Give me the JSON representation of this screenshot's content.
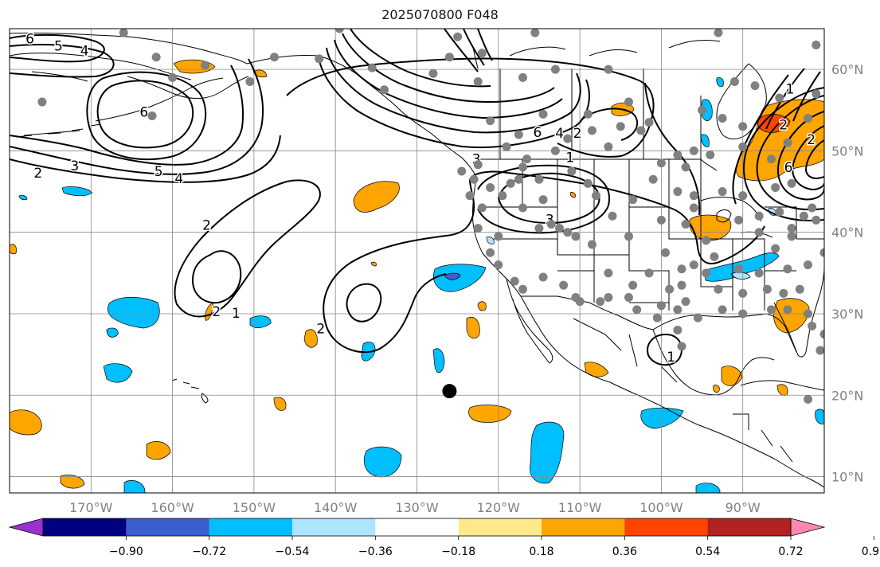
{
  "title": "2025070800 F048",
  "map": {
    "lon_range": [
      -180,
      -80
    ],
    "lat_range": [
      8,
      65
    ],
    "gridlines": true,
    "contour_style": "black solid lines with inline labels",
    "fill_colors": {
      "cyan": "#00bfff",
      "light_blue": "#aee4ff",
      "royal_blue": "#3a5fcd",
      "orange": "#ffa500",
      "red_orange": "#ff4500",
      "violet": "#9b30d0"
    },
    "lon_ticks": [
      {
        "value": -170,
        "label": "170°W"
      },
      {
        "value": -160,
        "label": "160°W"
      },
      {
        "value": -150,
        "label": "150°W"
      },
      {
        "value": -140,
        "label": "140°W"
      },
      {
        "value": -130,
        "label": "130°W"
      },
      {
        "value": -120,
        "label": "120°W"
      },
      {
        "value": -110,
        "label": "110°W"
      },
      {
        "value": -100,
        "label": "100°W"
      },
      {
        "value": -90,
        "label": "90°W"
      }
    ],
    "lat_ticks": [
      {
        "value": 60,
        "label": "60°N"
      },
      {
        "value": 50,
        "label": "50°N"
      },
      {
        "value": 40,
        "label": "40°N"
      },
      {
        "value": 30,
        "label": "30°N"
      },
      {
        "value": 20,
        "label": "20°N"
      },
      {
        "value": 10,
        "label": "10°N"
      }
    ],
    "contour_labels": [
      {
        "text": "6",
        "lon": -177.5,
        "lat": 63.8
      },
      {
        "text": "5",
        "lon": -174,
        "lat": 62.9
      },
      {
        "text": "4",
        "lon": -170.8,
        "lat": 62.3
      },
      {
        "text": "6",
        "lon": -163.5,
        "lat": 54.8
      },
      {
        "text": "3",
        "lon": -172,
        "lat": 48.2
      },
      {
        "text": "2",
        "lon": -176.5,
        "lat": 47.3
      },
      {
        "text": "5",
        "lon": -161.7,
        "lat": 47.5
      },
      {
        "text": "4",
        "lon": -159.2,
        "lat": 46.6
      },
      {
        "text": "2",
        "lon": -155.8,
        "lat": 40.9
      },
      {
        "text": "2",
        "lon": -154.6,
        "lat": 30.3
      },
      {
        "text": "1",
        "lon": -152.2,
        "lat": 30.1
      },
      {
        "text": "2",
        "lon": -141.8,
        "lat": 28.2
      },
      {
        "text": "3",
        "lon": -122.7,
        "lat": 49.0
      },
      {
        "text": "6",
        "lon": -115.2,
        "lat": 52.3
      },
      {
        "text": "4",
        "lon": -112.5,
        "lat": 52.2
      },
      {
        "text": "2",
        "lon": -110.3,
        "lat": 52.2
      },
      {
        "text": "1",
        "lon": -111.2,
        "lat": 49.2
      },
      {
        "text": "3",
        "lon": -113.7,
        "lat": 41.6
      },
      {
        "text": "1",
        "lon": -98.8,
        "lat": 24.7
      },
      {
        "text": "1",
        "lon": -84.2,
        "lat": 57.6
      },
      {
        "text": "2",
        "lon": -85.0,
        "lat": 53.2
      },
      {
        "text": "2",
        "lon": -81.6,
        "lat": 51.4
      },
      {
        "text": "6",
        "lon": -84.4,
        "lat": 48.0
      }
    ],
    "tc_marker": {
      "lon": -126,
      "lat": 20.5
    },
    "station_points": [
      [
        -176,
        56
      ],
      [
        -166,
        64.5
      ],
      [
        -162,
        61.5
      ],
      [
        -160,
        59
      ],
      [
        -156,
        60.5
      ],
      [
        -147.5,
        61.5
      ],
      [
        -150.5,
        58.5
      ],
      [
        -162.5,
        54.3
      ],
      [
        -139.5,
        65
      ],
      [
        -142,
        61.3
      ],
      [
        -135.5,
        60.2
      ],
      [
        -128,
        59.5
      ],
      [
        -134,
        57.5
      ],
      [
        -125,
        64
      ],
      [
        -122.5,
        58.5
      ],
      [
        -126,
        61.5
      ],
      [
        -121,
        53.7
      ],
      [
        -114.5,
        54.5
      ],
      [
        -117.5,
        52
      ],
      [
        -113,
        50
      ],
      [
        -119,
        50.5
      ],
      [
        -122.5,
        48.3
      ],
      [
        -124.5,
        47.5
      ],
      [
        -123,
        46.5
      ],
      [
        -123.5,
        44.5
      ],
      [
        -121,
        45.5
      ],
      [
        -122,
        43
      ],
      [
        -122.5,
        40.5
      ],
      [
        -120,
        39.5
      ],
      [
        -118.5,
        46
      ],
      [
        -117,
        48
      ],
      [
        -111,
        47.5
      ],
      [
        -109,
        46
      ],
      [
        -114.5,
        44
      ],
      [
        -115,
        46.5
      ],
      [
        -117,
        43
      ],
      [
        -108,
        44.5
      ],
      [
        -113.5,
        41
      ],
      [
        -112.5,
        40.5
      ],
      [
        -111.5,
        40
      ],
      [
        -110.5,
        39.5
      ],
      [
        -106,
        42
      ],
      [
        -108.5,
        38.5
      ],
      [
        -104,
        39.5
      ],
      [
        -103.5,
        44
      ],
      [
        -101,
        46.5
      ],
      [
        -100,
        48.5
      ],
      [
        -97,
        48
      ],
      [
        -98,
        45
      ],
      [
        -96,
        44.5
      ],
      [
        -97,
        41
      ],
      [
        -96,
        43
      ],
      [
        -100,
        41.5
      ],
      [
        -99.5,
        37.5
      ],
      [
        -94.5,
        39
      ],
      [
        -92.5,
        45
      ],
      [
        -90,
        44.5
      ],
      [
        -88,
        42
      ],
      [
        -85.5,
        42.5
      ],
      [
        -90.5,
        41.5
      ],
      [
        -88,
        40
      ],
      [
        -84,
        39.5
      ],
      [
        -82.5,
        42
      ],
      [
        -81,
        41.5
      ],
      [
        -86,
        45.5
      ],
      [
        -84,
        46
      ],
      [
        -81.5,
        43
      ],
      [
        -80,
        37.5
      ],
      [
        -86,
        38
      ],
      [
        -93.5,
        37
      ],
      [
        -97.5,
        35.5
      ],
      [
        -101.5,
        35
      ],
      [
        -99,
        33
      ],
      [
        -97.5,
        33.5
      ],
      [
        -97,
        31.5
      ],
      [
        -100,
        31
      ],
      [
        -104,
        32
      ],
      [
        -106.5,
        32
      ],
      [
        -110.5,
        32
      ],
      [
        -112,
        33.5
      ],
      [
        -106.5,
        35
      ],
      [
        -103.5,
        33.5
      ],
      [
        -114.5,
        34.5
      ],
      [
        -118,
        34
      ],
      [
        -120,
        36
      ],
      [
        -117,
        33
      ],
      [
        -121,
        37.5
      ],
      [
        -119.5,
        44.5
      ],
      [
        -115,
        40.5
      ],
      [
        -92.5,
        30.5
      ],
      [
        -90,
        30
      ],
      [
        -86.5,
        30.5
      ],
      [
        -84.5,
        30.5
      ],
      [
        -82,
        30
      ],
      [
        -81.5,
        28.5
      ],
      [
        -80.5,
        25.5
      ],
      [
        -80,
        27.5
      ],
      [
        -83,
        33
      ],
      [
        -85,
        32.5
      ],
      [
        -87,
        33
      ],
      [
        -90,
        32.5
      ],
      [
        -93,
        33
      ],
      [
        -95.5,
        29.5
      ],
      [
        -97.5,
        26
      ],
      [
        -98,
        28
      ],
      [
        -90.5,
        35.5
      ],
      [
        -88,
        35
      ],
      [
        -84.5,
        35.5
      ],
      [
        -82,
        36
      ],
      [
        -84,
        40.5
      ],
      [
        -94.5,
        35
      ],
      [
        -96,
        36
      ],
      [
        -98,
        30.5
      ],
      [
        -100.5,
        29.5
      ],
      [
        -103,
        30.5
      ],
      [
        -107.5,
        31.5
      ],
      [
        -110,
        31.5
      ],
      [
        -82,
        19.5
      ],
      [
        -81,
        57
      ],
      [
        -82,
        54
      ],
      [
        -84.5,
        51
      ],
      [
        -86.5,
        49
      ],
      [
        -88.5,
        58
      ],
      [
        -91,
        58.5
      ],
      [
        -90,
        50.5
      ],
      [
        -94,
        49.5
      ],
      [
        -96,
        50
      ],
      [
        -98,
        49.5
      ],
      [
        -102.5,
        52.5
      ],
      [
        -105,
        53
      ],
      [
        -108.5,
        52.5
      ],
      [
        -109,
        54.5
      ],
      [
        -117.5,
        46.5
      ],
      [
        -116.5,
        49
      ],
      [
        -111.5,
        51.5
      ],
      [
        -106.5,
        50.5
      ],
      [
        -104,
        56
      ],
      [
        -106.5,
        60
      ],
      [
        -113,
        60
      ],
      [
        -117,
        59
      ],
      [
        -122,
        62
      ],
      [
        -101.5,
        53.5
      ],
      [
        -95,
        55
      ],
      [
        -92.5,
        54
      ],
      [
        -90,
        53
      ],
      [
        -85.5,
        56.5
      ],
      [
        -81,
        63
      ],
      [
        -93,
        64.5
      ],
      [
        -115.5,
        64.5
      ]
    ]
  },
  "colorbar": {
    "bins": [
      "#9b30d0",
      "#000080",
      "#3a5fcd",
      "#00bfff",
      "#aee4ff",
      "#ffffff",
      "#ffe98a",
      "#ffa500",
      "#ff4500",
      "#b22222",
      "#ff88b0"
    ],
    "ticks": [
      "−0.90",
      "−0.72",
      "−0.54",
      "−0.36",
      "−0.18",
      "0.18",
      "0.36",
      "0.54",
      "0.72",
      "0.90"
    ]
  }
}
